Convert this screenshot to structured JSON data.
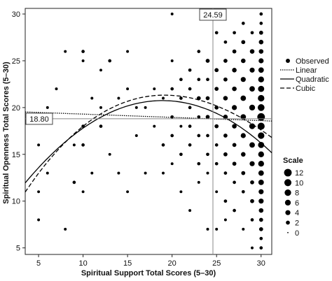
{
  "chart_data": {
    "type": "scatter",
    "xlabel": "Spiritual Support Total Scores (5–30)",
    "ylabel": "Spiritual Openness Total Scores (5–30)",
    "xlim": [
      3.5,
      31.2
    ],
    "ylim": [
      4.3,
      30.6
    ],
    "xticks": [
      5,
      10,
      15,
      20,
      25,
      30
    ],
    "yticks": [
      5,
      10,
      15,
      20,
      25,
      30
    ],
    "grid": false,
    "reference_lines": {
      "vertical": {
        "value": 24.59,
        "label": "24.59"
      },
      "horizontal": {
        "value": 18.8,
        "label": "18.80"
      }
    },
    "series": [
      {
        "name": "Observed",
        "style": "points"
      },
      {
        "name": "Linear",
        "style": "dotted",
        "function": "polynomial",
        "coefficients": [
          19.65,
          -0.035
        ]
      },
      {
        "name": "Quadratic",
        "style": "solid",
        "function": "polynomial",
        "coefficients": [
          7.5,
          1.4,
          -0.037
        ]
      },
      {
        "name": "Cubic",
        "style": "dashed",
        "function": "polynomial",
        "coefficients": [
          5.3,
          1.82,
          -0.059,
          0.0004
        ]
      }
    ],
    "points": [
      [
        5,
        16,
        0.5
      ],
      [
        5,
        11,
        0.5
      ],
      [
        5,
        8,
        0.5
      ],
      [
        6,
        13,
        0.5
      ],
      [
        6,
        20,
        0.5
      ],
      [
        7,
        22,
        0.5
      ],
      [
        8,
        26,
        0.5
      ],
      [
        8,
        7,
        0.5
      ],
      [
        9,
        12,
        1
      ],
      [
        9,
        16,
        0.5
      ],
      [
        10,
        26,
        1
      ],
      [
        10,
        25,
        0.5
      ],
      [
        10,
        18,
        1
      ],
      [
        10,
        16,
        1
      ],
      [
        10,
        11,
        0.5
      ],
      [
        11,
        13,
        0.5
      ],
      [
        11,
        21,
        0.5
      ],
      [
        12,
        24,
        0.5
      ],
      [
        12,
        20,
        0.5
      ],
      [
        12,
        18,
        1
      ],
      [
        13,
        25,
        1
      ],
      [
        13,
        15,
        0.5
      ],
      [
        14,
        13,
        0.5
      ],
      [
        14,
        21,
        0.5
      ],
      [
        15,
        26,
        0.5
      ],
      [
        15,
        22,
        0.5
      ],
      [
        15,
        11,
        0.5
      ],
      [
        16,
        20,
        0.5
      ],
      [
        16,
        17,
        0.5
      ],
      [
        17,
        20,
        0.5
      ],
      [
        17,
        13,
        0.5
      ],
      [
        18,
        22,
        0.5
      ],
      [
        18,
        18,
        0.5
      ],
      [
        19,
        21,
        0.5
      ],
      [
        19,
        16,
        1
      ],
      [
        19,
        13,
        0.5
      ],
      [
        20,
        30,
        0.5
      ],
      [
        20,
        25,
        0.5
      ],
      [
        20,
        22,
        1
      ],
      [
        20,
        19,
        1
      ],
      [
        20,
        17,
        1
      ],
      [
        20,
        14,
        0.5
      ],
      [
        21,
        23,
        1
      ],
      [
        21,
        21,
        1
      ],
      [
        21,
        18,
        0.5
      ],
      [
        21,
        15,
        1
      ],
      [
        21,
        11,
        0.5
      ],
      [
        22,
        24,
        1
      ],
      [
        22,
        22,
        1
      ],
      [
        22,
        20,
        1
      ],
      [
        22,
        18,
        1
      ],
      [
        22,
        16,
        1
      ],
      [
        22,
        9,
        0.5
      ],
      [
        23,
        26,
        1
      ],
      [
        23,
        23,
        1
      ],
      [
        23,
        21,
        2
      ],
      [
        23,
        19,
        1
      ],
      [
        23,
        17,
        1
      ],
      [
        23,
        14,
        1
      ],
      [
        23,
        12,
        0.5
      ],
      [
        24,
        25,
        2
      ],
      [
        24,
        23,
        1
      ],
      [
        24,
        21,
        2
      ],
      [
        24,
        19,
        2
      ],
      [
        24,
        17,
        1
      ],
      [
        24,
        15,
        1
      ],
      [
        24,
        13,
        0.5
      ],
      [
        24,
        7,
        0.5
      ],
      [
        25,
        28,
        1
      ],
      [
        25,
        24,
        2
      ],
      [
        25,
        22,
        2
      ],
      [
        25,
        20,
        2
      ],
      [
        25,
        18,
        2
      ],
      [
        25,
        16,
        1
      ],
      [
        25,
        14,
        1
      ],
      [
        25,
        11,
        0.5
      ],
      [
        25,
        7,
        0.5
      ],
      [
        26,
        27,
        1
      ],
      [
        26,
        25,
        2
      ],
      [
        26,
        23,
        2
      ],
      [
        26,
        21,
        3
      ],
      [
        26,
        19,
        3
      ],
      [
        26,
        17,
        2
      ],
      [
        26,
        15,
        2
      ],
      [
        26,
        13,
        1
      ],
      [
        26,
        10,
        1
      ],
      [
        26,
        8,
        0.5
      ],
      [
        27,
        28,
        1
      ],
      [
        27,
        26,
        2
      ],
      [
        27,
        24,
        3
      ],
      [
        27,
        22,
        3
      ],
      [
        27,
        20,
        4
      ],
      [
        27,
        18,
        3
      ],
      [
        27,
        16,
        2
      ],
      [
        27,
        14,
        2
      ],
      [
        27,
        12,
        1
      ],
      [
        27,
        9,
        1
      ],
      [
        28,
        29,
        1
      ],
      [
        28,
        27,
        2
      ],
      [
        28,
        25,
        3
      ],
      [
        28,
        23,
        4
      ],
      [
        28,
        21,
        5
      ],
      [
        28,
        19,
        5
      ],
      [
        28,
        17,
        4
      ],
      [
        28,
        15,
        3
      ],
      [
        28,
        13,
        2
      ],
      [
        28,
        11,
        1
      ],
      [
        28,
        7,
        0.5
      ],
      [
        29,
        28,
        1
      ],
      [
        29,
        26,
        3
      ],
      [
        29,
        24,
        4
      ],
      [
        29,
        22,
        5
      ],
      [
        29,
        20,
        6
      ],
      [
        29,
        18,
        6
      ],
      [
        29,
        16,
        5
      ],
      [
        29,
        14,
        4
      ],
      [
        29,
        12,
        2
      ],
      [
        29,
        10,
        2
      ],
      [
        29,
        8,
        1
      ],
      [
        29,
        5,
        0.5
      ],
      [
        30,
        30,
        1
      ],
      [
        30,
        29,
        1
      ],
      [
        30,
        28,
        2
      ],
      [
        30,
        27,
        3
      ],
      [
        30,
        26,
        3
      ],
      [
        30,
        25,
        4
      ],
      [
        30,
        24,
        5
      ],
      [
        30,
        23,
        6
      ],
      [
        30,
        22,
        7
      ],
      [
        30,
        21,
        8
      ],
      [
        30,
        20,
        9
      ],
      [
        30,
        19,
        12
      ],
      [
        30,
        18,
        10
      ],
      [
        30,
        17,
        8
      ],
      [
        30,
        16,
        7
      ],
      [
        30,
        15,
        6
      ],
      [
        30,
        14,
        6
      ],
      [
        30,
        13,
        5
      ],
      [
        30,
        12,
        5
      ],
      [
        30,
        11,
        4
      ],
      [
        30,
        10,
        4
      ],
      [
        30,
        9,
        3
      ],
      [
        30,
        8,
        2
      ],
      [
        30,
        7,
        2
      ],
      [
        30,
        6,
        1
      ],
      [
        30,
        5,
        1
      ]
    ],
    "size_legend": {
      "title": "Scale",
      "entries": [
        12,
        10,
        8,
        6,
        4,
        2,
        0
      ]
    }
  }
}
